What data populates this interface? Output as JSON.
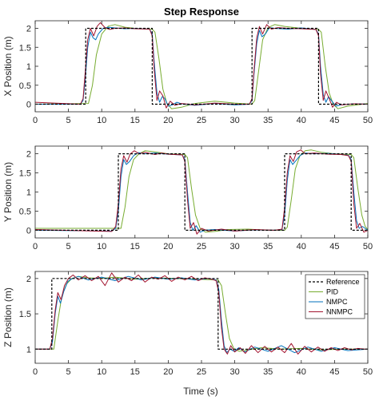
{
  "chart_data": {
    "type": "line",
    "title": "Step Response",
    "xlabel": "Time (s)",
    "xlim": [
      0,
      50
    ],
    "xticks": [
      "0",
      "5",
      "10",
      "15",
      "20",
      "25",
      "30",
      "35",
      "40",
      "45",
      "50"
    ],
    "legend": {
      "placement": "top-right",
      "panel": 2,
      "entries": [
        "Reference",
        "PID",
        "NMPC",
        "NNMPC"
      ]
    },
    "colors": {
      "Reference": "#000000",
      "PID": "#77ac30",
      "NMPC": "#0072bd",
      "NNMPC": "#a2142f"
    },
    "panels": [
      {
        "ylabel": "X Position (m)",
        "ylim": [
          -0.2,
          2.2
        ],
        "yticks": [
          "0",
          "0.5",
          "1",
          "1.5",
          "2"
        ],
        "series": [
          {
            "name": "Reference",
            "x": [
              0,
              7.6,
              7.6,
              17.6,
              17.6,
              32.6,
              32.6,
              42.6,
              42.6,
              50
            ],
            "y": [
              0,
              0,
              2,
              2,
              0,
              0,
              2,
              2,
              0,
              0
            ]
          },
          {
            "name": "PID",
            "x": [
              0,
              8.0,
              8.6,
              9.2,
              10.0,
              11.0,
              12.0,
              13.5,
              15,
              17.6,
              18.0,
              18.6,
              19.2,
              19.8,
              20.5,
              22,
              24,
              27,
              30,
              32.6,
              33.0,
              33.6,
              34.2,
              35.0,
              36,
              37.5,
              40,
              42.6,
              43.0,
              43.6,
              44.2,
              44.8,
              45.5,
              47,
              50
            ],
            "y": [
              0,
              0.02,
              0.5,
              1.3,
              1.85,
              2.06,
              2.1,
              2.03,
              2.0,
              1.98,
              1.9,
              1.2,
              0.4,
              0.02,
              -0.12,
              -0.08,
              0.02,
              0.08,
              0.03,
              0.0,
              0.1,
              0.9,
              1.7,
              2.02,
              2.1,
              2.05,
              2.0,
              1.97,
              1.9,
              1.0,
              0.3,
              0.0,
              -0.12,
              -0.05,
              0.02
            ]
          },
          {
            "name": "NMPC",
            "x": [
              0,
              6.8,
              7.2,
              7.5,
              7.9,
              8.3,
              8.7,
              9.1,
              9.5,
              10.2,
              11,
              12,
              13.5,
              15,
              17.2,
              17.6,
              17.9,
              18.3,
              18.7,
              19.1,
              19.5,
              20,
              20.6,
              21.3,
              22,
              24,
              27,
              30,
              32.2,
              32.6,
              32.9,
              33.3,
              33.7,
              34.1,
              34.6,
              35.2,
              36,
              38,
              40,
              42.2,
              42.6,
              42.9,
              43.3,
              43.7,
              44.1,
              44.6,
              45.2,
              46,
              48,
              50
            ],
            "y": [
              0,
              0.0,
              0.1,
              0.6,
              1.5,
              1.9,
              1.75,
              1.7,
              1.85,
              2.0,
              2.03,
              2.01,
              1.99,
              2.0,
              1.98,
              1.85,
              1.1,
              0.3,
              0.05,
              0.2,
              0.15,
              -0.05,
              -0.02,
              0.05,
              0.01,
              -0.03,
              0.02,
              -0.02,
              0.0,
              0.1,
              0.8,
              1.6,
              1.95,
              1.78,
              1.85,
              2.02,
              2.0,
              1.98,
              2.01,
              1.97,
              1.85,
              1.0,
              0.25,
              0.05,
              0.2,
              0.08,
              -0.05,
              -0.02,
              0.01,
              0.0
            ]
          },
          {
            "name": "NNMPC",
            "x": [
              0,
              6.8,
              7.2,
              7.5,
              7.9,
              8.3,
              8.8,
              9.3,
              9.8,
              10.5,
              11.2,
              12,
              13.5,
              15,
              17.2,
              17.6,
              17.9,
              18.3,
              18.7,
              19.2,
              19.7,
              20.3,
              21,
              22,
              24,
              27,
              30,
              32.2,
              32.6,
              32.9,
              33.3,
              33.7,
              34.2,
              34.8,
              35.5,
              36.5,
              38,
              40,
              42.2,
              42.6,
              42.9,
              43.3,
              43.7,
              44.2,
              44.7,
              45.3,
              46,
              48,
              50
            ],
            "y": [
              0.05,
              0.0,
              0.15,
              0.8,
              1.7,
              2.0,
              1.8,
              2.05,
              2.15,
              2.02,
              1.97,
              2.0,
              2.01,
              1.99,
              1.98,
              1.8,
              0.9,
              0.1,
              0.35,
              0.22,
              -0.1,
              0.08,
              -0.03,
              0.02,
              -0.02,
              0.03,
              0.0,
              0.0,
              0.15,
              0.9,
              1.75,
              2.05,
              1.85,
              2.1,
              1.98,
              2.02,
              2.0,
              1.99,
              1.97,
              1.8,
              0.8,
              0.1,
              0.35,
              0.15,
              -0.08,
              0.05,
              -0.02,
              0.01,
              0.0
            ]
          }
        ]
      },
      {
        "ylabel": "Y Position (m)",
        "ylim": [
          -0.2,
          2.2
        ],
        "yticks": [
          "0",
          "0.5",
          "1",
          "1.5",
          "2"
        ],
        "series": [
          {
            "name": "Reference",
            "x": [
              0,
              12.5,
              12.5,
              22.5,
              22.5,
              37.5,
              37.5,
              47.5,
              47.5,
              50
            ],
            "y": [
              0,
              0,
              2,
              2,
              0,
              0,
              2,
              2,
              0,
              0
            ]
          },
          {
            "name": "PID",
            "x": [
              0,
              10,
              12.9,
              13.5,
              14.1,
              14.8,
              15.6,
              16.5,
              18,
              20,
              22.5,
              22.9,
              23.5,
              24.1,
              24.8,
              25.6,
              27,
              29,
              32,
              35,
              37.5,
              37.9,
              38.5,
              39.1,
              39.8,
              40.6,
              41.5,
              43,
              45,
              47.5,
              47.9,
              48.5,
              49.1,
              49.6,
              50
            ],
            "y": [
              0.05,
              0.05,
              0.05,
              0.6,
              1.4,
              1.85,
              2.0,
              2.08,
              2.05,
              2.0,
              1.98,
              1.9,
              1.1,
              0.4,
              0.05,
              -0.05,
              -0.03,
              0.02,
              0.03,
              0.0,
              0.0,
              0.08,
              0.8,
              1.6,
              1.95,
              2.08,
              2.1,
              2.04,
              2.0,
              1.98,
              1.9,
              1.1,
              0.4,
              0.1,
              0.02
            ]
          },
          {
            "name": "NMPC",
            "x": [
              0,
              11.5,
              12.1,
              12.5,
              12.9,
              13.3,
              13.7,
              14.2,
              14.8,
              15.5,
              16.5,
              18,
              20,
              22.1,
              22.5,
              22.9,
              23.3,
              23.7,
              24.2,
              24.8,
              25.5,
              27,
              30,
              33,
              36,
              37.1,
              37.5,
              37.9,
              38.3,
              38.7,
              39.2,
              39.8,
              40.5,
              42,
              44,
              46,
              47.1,
              47.5,
              47.9,
              48.3,
              48.7,
              49.2,
              50
            ],
            "y": [
              0,
              -0.02,
              0.05,
              0.5,
              1.4,
              1.85,
              1.72,
              1.8,
              1.95,
              2.03,
              2.0,
              2.02,
              1.99,
              1.97,
              1.85,
              1.0,
              0.2,
              0.0,
              0.12,
              -0.05,
              0.0,
              0.02,
              -0.02,
              0.01,
              0.0,
              0.02,
              0.4,
              1.3,
              1.85,
              1.72,
              1.82,
              1.95,
              2.02,
              2.0,
              2.01,
              1.98,
              1.96,
              1.85,
              1.0,
              0.25,
              0.05,
              0.1,
              0.0
            ]
          },
          {
            "name": "NNMPC",
            "x": [
              0,
              11.5,
              12.1,
              12.5,
              12.9,
              13.3,
              13.8,
              14.3,
              14.9,
              15.6,
              16.5,
              18,
              19,
              20,
              22.1,
              22.5,
              22.9,
              23.3,
              23.8,
              24.3,
              25,
              26,
              28,
              30,
              33,
              36,
              37.1,
              37.5,
              37.9,
              38.3,
              38.8,
              39.3,
              39.9,
              40.6,
              42,
              44,
              46,
              47.1,
              47.5,
              47.9,
              48.3,
              48.8,
              49.4,
              50
            ],
            "y": [
              0.02,
              -0.03,
              0.1,
              0.7,
              1.6,
              1.95,
              1.78,
              2.0,
              2.08,
              2.0,
              2.04,
              1.98,
              2.02,
              1.99,
              1.97,
              1.8,
              0.8,
              0.05,
              0.2,
              -0.1,
              0.05,
              -0.02,
              0.03,
              -0.02,
              0.02,
              0.0,
              0.03,
              0.6,
              1.5,
              1.95,
              1.8,
              2.05,
              2.1,
              2.0,
              2.02,
              1.99,
              1.98,
              1.95,
              1.8,
              0.7,
              0.05,
              0.18,
              -0.05,
              0.0
            ]
          }
        ]
      },
      {
        "ylabel": "Z Position (m)",
        "ylim": [
          0.8,
          2.1
        ],
        "yticks": [
          "1",
          "1.5",
          "2"
        ],
        "series": [
          {
            "name": "Reference",
            "x": [
              0,
              2.5,
              2.5,
              27.5,
              27.5,
              50
            ],
            "y": [
              1,
              1,
              2,
              2,
              1,
              1
            ]
          },
          {
            "name": "PID",
            "x": [
              0,
              2.8,
              3.4,
              4.0,
              4.7,
              5.5,
              6.5,
              8,
              10,
              12,
              15,
              18,
              21,
              24,
              27.5,
              28.0,
              28.6,
              29.2,
              29.9,
              30.7,
              32,
              34,
              37,
              40,
              43,
              46,
              50
            ],
            "y": [
              1.0,
              1.0,
              1.4,
              1.75,
              1.92,
              2.0,
              2.03,
              2.01,
              2.0,
              2.02,
              1.99,
              2.01,
              2.0,
              1.99,
              1.98,
              1.9,
              1.5,
              1.15,
              1.0,
              0.97,
              0.99,
              1.02,
              1.0,
              1.01,
              0.99,
              1.0,
              1.0
            ]
          },
          {
            "name": "NMPC",
            "x": [
              0,
              2.2,
              2.6,
              3.0,
              3.4,
              3.8,
              4.3,
              4.9,
              5.6,
              6.5,
              8,
              10,
              12,
              14,
              16,
              18,
              20,
              22,
              24,
              26,
              27.2,
              27.6,
              28.0,
              28.4,
              28.8,
              29.3,
              29.9,
              30.6,
              31.5,
              33,
              35,
              37,
              39,
              41,
              43,
              45,
              47,
              50
            ],
            "y": [
              1.0,
              1.0,
              1.1,
              1.5,
              1.75,
              1.65,
              1.82,
              1.96,
              2.0,
              2.03,
              1.98,
              2.02,
              1.97,
              2.03,
              1.98,
              2.02,
              1.99,
              2.01,
              1.98,
              2.0,
              1.98,
              1.85,
              1.4,
              1.05,
              0.95,
              1.0,
              0.97,
              1.02,
              0.96,
              1.03,
              0.97,
              1.05,
              0.95,
              1.03,
              0.97,
              1.02,
              0.98,
              1.0
            ]
          },
          {
            "name": "NNMPC",
            "x": [
              0,
              2.2,
              2.6,
              3.0,
              3.4,
              3.9,
              4.4,
              5.0,
              5.7,
              6.5,
              7.5,
              8.5,
              9.5,
              10.5,
              11.5,
              12.5,
              13.5,
              14.5,
              15.5,
              16.5,
              17.5,
              18.5,
              19.5,
              20.5,
              21.5,
              22.5,
              23.5,
              24.5,
              25.5,
              26.5,
              27.2,
              27.6,
              28.0,
              28.4,
              28.9,
              29.4,
              30.0,
              30.8,
              31.6,
              32.5,
              33.5,
              34.5,
              35.5,
              36.5,
              37.5,
              38.5,
              39.5,
              40.5,
              41.5,
              42.5,
              43.5,
              44.5,
              45.5,
              46.5,
              47.5,
              48.5,
              49.5,
              50
            ],
            "y": [
              1.0,
              1.0,
              1.15,
              1.55,
              1.8,
              1.7,
              1.9,
              2.0,
              2.05,
              1.98,
              2.04,
              1.97,
              2.03,
              1.9,
              2.08,
              1.95,
              2.02,
              1.97,
              2.05,
              1.95,
              2.02,
              1.99,
              2.04,
              1.96,
              2.02,
              1.98,
              2.03,
              1.97,
              2.01,
              1.99,
              1.97,
              1.8,
              1.3,
              1.0,
              0.93,
              1.05,
              0.96,
              1.02,
              0.94,
              1.05,
              0.95,
              1.04,
              0.96,
              1.03,
              0.95,
              1.08,
              0.93,
              1.04,
              0.96,
              1.03,
              0.97,
              1.02,
              0.98,
              1.02,
              0.99,
              1.01,
              1.0,
              1.0
            ]
          }
        ]
      }
    ]
  }
}
